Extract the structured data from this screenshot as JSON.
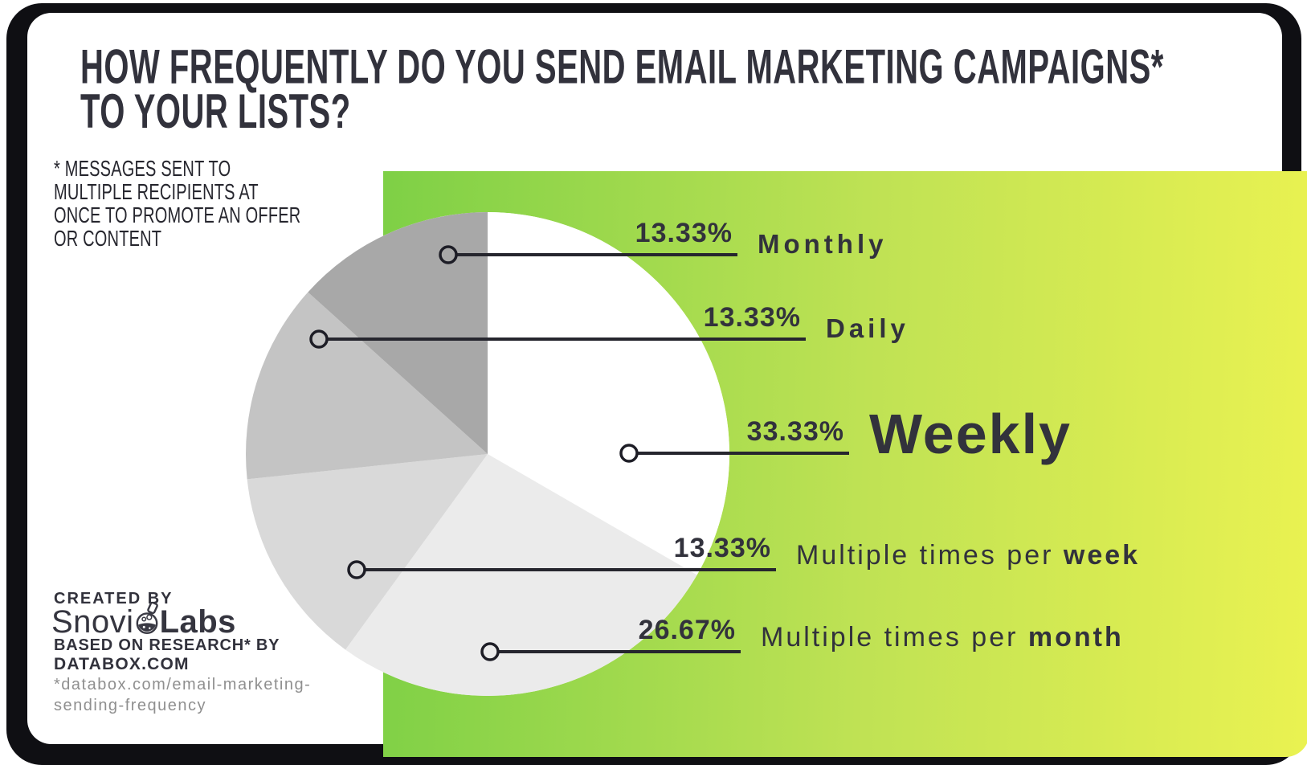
{
  "title": {
    "line1": "HOW FREQUENTLY DO YOU SEND EMAIL MARKETING CAMPAIGNS*",
    "line2": "TO YOUR LISTS?"
  },
  "footnote": {
    "lines": [
      "* MESSAGES SENT TO",
      "MULTIPLE RECIPIENTS AT",
      "ONCE TO PROMOTE AN OFFER",
      "OR CONTENT"
    ]
  },
  "chart_data": {
    "type": "pie",
    "title": "HOW FREQUENTLY DO YOU SEND EMAIL MARKETING CAMPAIGNS* TO YOUR LISTS?",
    "direction": "clockwise",
    "start_angle_deg": 0,
    "legend_position": "right-callouts",
    "slices": [
      {
        "label": "Weekly",
        "value": 33.33,
        "pct_label": "33.33%",
        "color": "#ffffff"
      },
      {
        "label": "Multiple times per month",
        "value": 26.67,
        "pct_label": "26.67%",
        "color": "#ebebeb"
      },
      {
        "label": "Multiple times per week",
        "value": 13.33,
        "pct_label": "13.33%",
        "color": "#d9d9d9"
      },
      {
        "label": "Daily",
        "value": 13.33,
        "pct_label": "13.33%",
        "color": "#c4c4c4"
      },
      {
        "label": "Monthly",
        "value": 13.33,
        "pct_label": "13.33%",
        "color": "#a8a8a8"
      }
    ]
  },
  "callouts": [
    {
      "pct": "13.33%",
      "label_regular": "",
      "label_bold": "Monthly"
    },
    {
      "pct": "13.33%",
      "label_regular": "",
      "label_bold": "Daily"
    },
    {
      "pct": "33.33%",
      "label_regular": "",
      "label_bold": "Weekly"
    },
    {
      "pct": "13.33%",
      "label_regular": "Multiple times per ",
      "label_bold": "week"
    },
    {
      "pct": "26.67%",
      "label_regular": "Multiple times per ",
      "label_bold": "month"
    }
  ],
  "attribution": {
    "created_by": "CREATED BY",
    "logo_text_1": "Snovi",
    "logo_text_2": "Labs",
    "based_on": "BASED ON RESEARCH* BY",
    "source": "DATABOX.COM",
    "url_line1": "*databox.com/email-marketing-",
    "url_line2": "sending-frequency"
  },
  "colors": {
    "ink": "#32323c",
    "leader_line": "#26262e",
    "green_start": "#7ed046",
    "green_mid": "#bfe254",
    "green_end": "#eaf251",
    "url_gray": "#8f8f8f",
    "frame": "#0f0f13"
  }
}
